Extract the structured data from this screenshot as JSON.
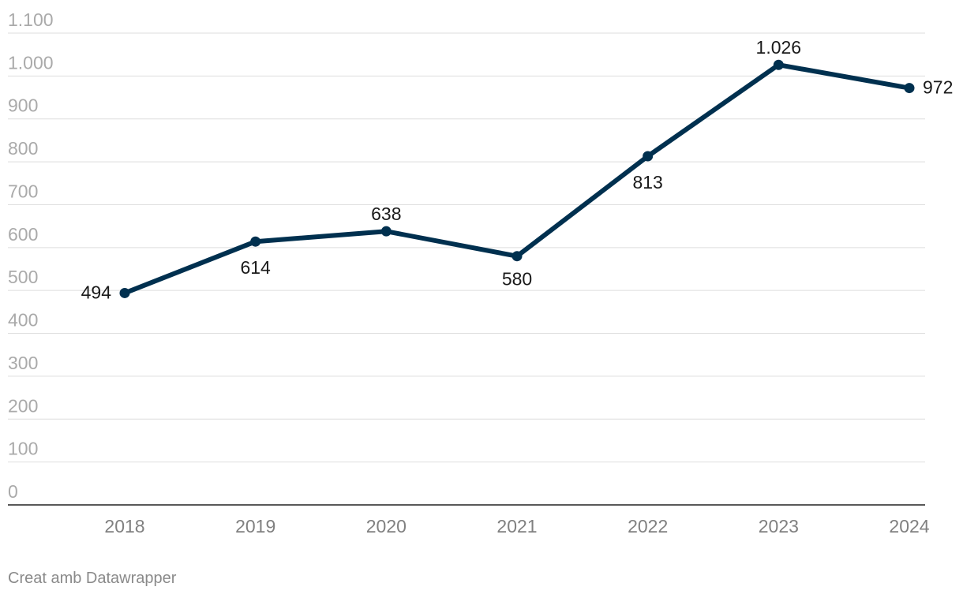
{
  "chart_data": {
    "type": "line",
    "x": [
      "2018",
      "2019",
      "2020",
      "2021",
      "2022",
      "2023",
      "2024"
    ],
    "series": [
      {
        "values": [
          494,
          614,
          638,
          580,
          813,
          1026,
          972
        ],
        "labels": [
          "494",
          "614",
          "638",
          "580",
          "813",
          "1.026",
          "972"
        ],
        "color": "#00304f"
      }
    ],
    "ylim": [
      0,
      1100
    ],
    "yticks": [
      0,
      100,
      200,
      300,
      400,
      500,
      600,
      700,
      800,
      900,
      1000,
      1100
    ],
    "ytick_labels": [
      "0",
      "100",
      "200",
      "300",
      "400",
      "500",
      "600",
      "700",
      "800",
      "900",
      "1.000",
      "1.100"
    ],
    "grid": true,
    "title": "",
    "xlabel": "",
    "ylabel": ""
  },
  "footer": {
    "credit": "Creat amb Datawrapper"
  }
}
